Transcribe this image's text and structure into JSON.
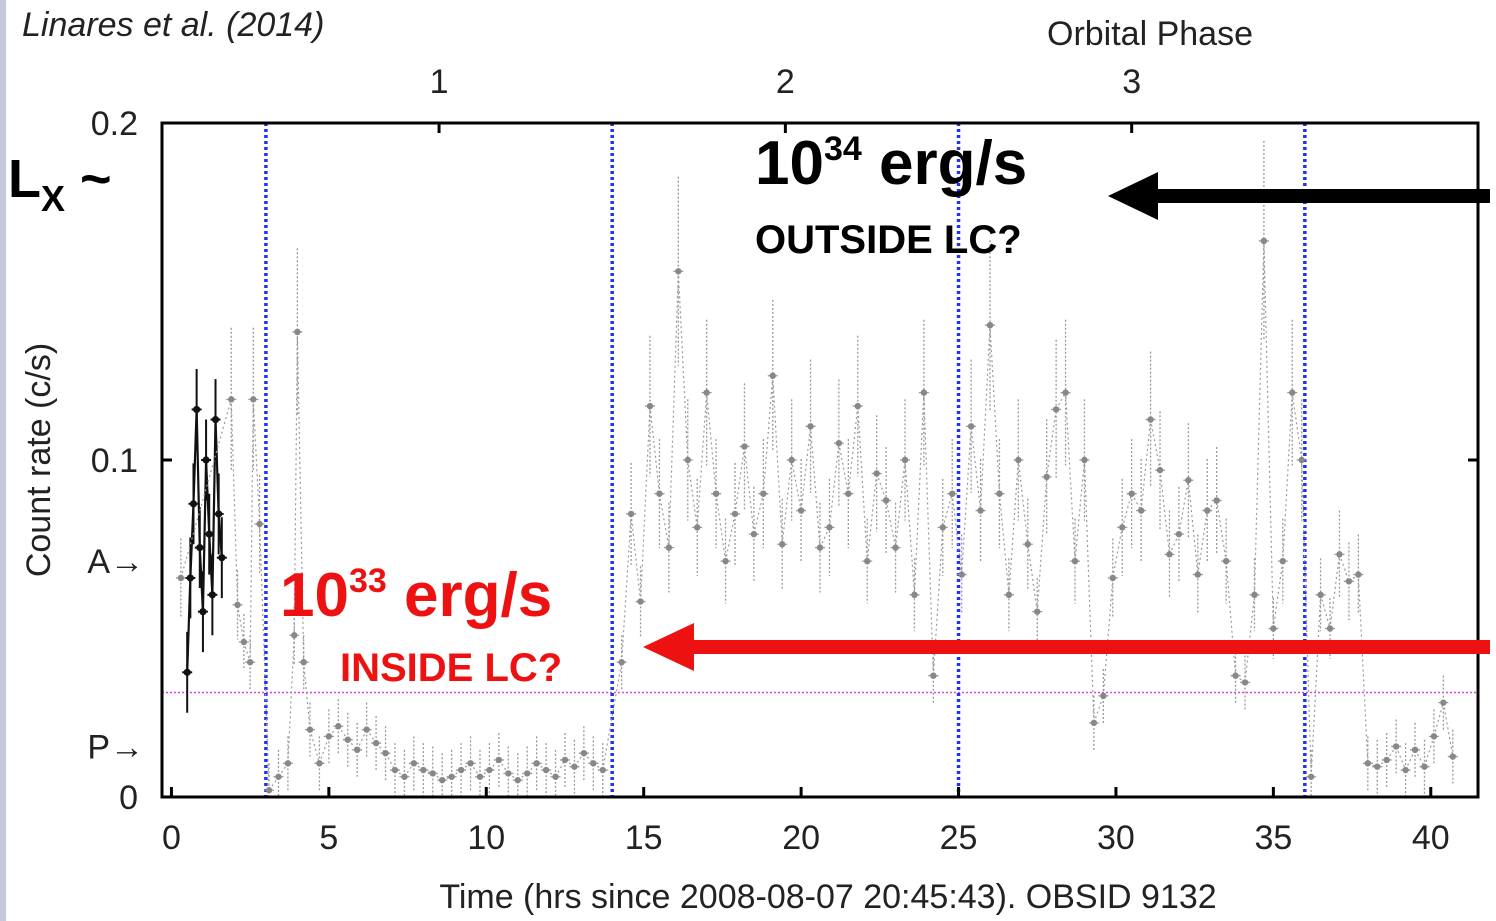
{
  "chart_data": {
    "type": "scatter",
    "citation": "Linares et al. (2014)",
    "xlabel": "Time (hrs since 2008-08-07 20:45:43). OBSID 9132",
    "ylabel": "Count rate (c/s)",
    "top_axis_label": "Orbital  Phase",
    "xlim": [
      -0.3,
      41.5
    ],
    "ylim": [
      0,
      0.2
    ],
    "x_ticks": [
      0,
      5,
      10,
      15,
      20,
      25,
      30,
      35,
      40
    ],
    "x_tick_labels": [
      "0",
      "5",
      "10",
      "15",
      "20",
      "25",
      "30",
      "35",
      "40"
    ],
    "y_ticks": [
      0,
      0.1,
      0.2
    ],
    "y_tick_labels": [
      "0",
      "0.1",
      "0.2"
    ],
    "y_markers": [
      {
        "label": "A→",
        "y": 0.07
      },
      {
        "label": "P→",
        "y": 0.015
      }
    ],
    "top_ticks": [
      {
        "label": "1",
        "x": 8.5
      },
      {
        "label": "2",
        "x": 19.5
      },
      {
        "label": "3",
        "x": 30.5
      }
    ],
    "phase_boundaries": [
      3.0,
      14.0,
      25.0,
      36.0
    ],
    "reference_level": 0.031,
    "series": [
      {
        "style": "solid-black",
        "points": [
          [
            0.5,
            0.037
          ],
          [
            0.6,
            0.065
          ],
          [
            0.7,
            0.087
          ],
          [
            0.8,
            0.115
          ],
          [
            0.9,
            0.074
          ],
          [
            1.0,
            0.055
          ],
          [
            1.1,
            0.1
          ],
          [
            1.2,
            0.078
          ],
          [
            1.3,
            0.06
          ],
          [
            1.4,
            0.112
          ],
          [
            1.5,
            0.084
          ],
          [
            1.6,
            0.071
          ]
        ]
      },
      {
        "style": "dotted-gray",
        "points": [
          [
            0.3,
            0.065
          ],
          [
            1.9,
            0.118
          ],
          [
            2.1,
            0.057
          ],
          [
            2.3,
            0.046
          ],
          [
            2.5,
            0.04
          ],
          [
            2.6,
            0.118
          ],
          [
            2.8,
            0.081
          ],
          [
            3.1,
            0.002
          ],
          [
            3.4,
            0.006
          ],
          [
            3.7,
            0.01
          ],
          [
            3.9,
            0.048
          ],
          [
            4.0,
            0.138
          ],
          [
            4.2,
            0.04
          ],
          [
            4.4,
            0.02
          ],
          [
            4.7,
            0.01
          ],
          [
            5.0,
            0.018
          ],
          [
            5.3,
            0.021
          ],
          [
            5.6,
            0.017
          ],
          [
            5.9,
            0.014
          ],
          [
            6.2,
            0.02
          ],
          [
            6.5,
            0.016
          ],
          [
            6.8,
            0.013
          ],
          [
            7.1,
            0.008
          ],
          [
            7.4,
            0.006
          ],
          [
            7.7,
            0.01
          ],
          [
            8.0,
            0.008
          ],
          [
            8.3,
            0.007
          ],
          [
            8.6,
            0.005
          ],
          [
            8.9,
            0.006
          ],
          [
            9.2,
            0.008
          ],
          [
            9.5,
            0.01
          ],
          [
            9.8,
            0.006
          ],
          [
            10.1,
            0.008
          ],
          [
            10.4,
            0.011
          ],
          [
            10.7,
            0.007
          ],
          [
            11.0,
            0.005
          ],
          [
            11.3,
            0.007
          ],
          [
            11.6,
            0.01
          ],
          [
            11.9,
            0.008
          ],
          [
            12.2,
            0.006
          ],
          [
            12.5,
            0.011
          ],
          [
            12.8,
            0.009
          ],
          [
            13.1,
            0.013
          ],
          [
            13.4,
            0.01
          ],
          [
            13.7,
            0.008
          ],
          [
            14.3,
            0.04
          ],
          [
            14.6,
            0.084
          ],
          [
            14.9,
            0.058
          ],
          [
            15.2,
            0.116
          ],
          [
            15.5,
            0.09
          ],
          [
            15.8,
            0.074
          ],
          [
            16.1,
            0.156
          ],
          [
            16.4,
            0.1
          ],
          [
            16.7,
            0.08
          ],
          [
            17.0,
            0.12
          ],
          [
            17.3,
            0.09
          ],
          [
            17.6,
            0.07
          ],
          [
            17.9,
            0.084
          ],
          [
            18.2,
            0.104
          ],
          [
            18.5,
            0.078
          ],
          [
            18.8,
            0.09
          ],
          [
            19.1,
            0.125
          ],
          [
            19.4,
            0.075
          ],
          [
            19.7,
            0.1
          ],
          [
            20.0,
            0.085
          ],
          [
            20.3,
            0.11
          ],
          [
            20.6,
            0.074
          ],
          [
            20.9,
            0.08
          ],
          [
            21.2,
            0.105
          ],
          [
            21.5,
            0.09
          ],
          [
            21.8,
            0.116
          ],
          [
            22.1,
            0.07
          ],
          [
            22.4,
            0.096
          ],
          [
            22.7,
            0.088
          ],
          [
            23.0,
            0.074
          ],
          [
            23.3,
            0.1
          ],
          [
            23.6,
            0.06
          ],
          [
            23.9,
            0.12
          ],
          [
            24.2,
            0.036
          ],
          [
            24.5,
            0.08
          ],
          [
            24.8,
            0.09
          ],
          [
            25.1,
            0.066
          ],
          [
            25.4,
            0.11
          ],
          [
            25.7,
            0.085
          ],
          [
            26.0,
            0.14
          ],
          [
            26.3,
            0.09
          ],
          [
            26.6,
            0.06
          ],
          [
            26.9,
            0.1
          ],
          [
            27.2,
            0.075
          ],
          [
            27.5,
            0.055
          ],
          [
            27.8,
            0.095
          ],
          [
            28.1,
            0.115
          ],
          [
            28.4,
            0.12
          ],
          [
            28.7,
            0.07
          ],
          [
            29.0,
            0.1
          ],
          [
            29.3,
            0.022
          ],
          [
            29.6,
            0.03
          ],
          [
            29.9,
            0.065
          ],
          [
            30.2,
            0.08
          ],
          [
            30.5,
            0.09
          ],
          [
            30.8,
            0.085
          ],
          [
            31.1,
            0.112
          ],
          [
            31.4,
            0.097
          ],
          [
            31.7,
            0.072
          ],
          [
            32.0,
            0.078
          ],
          [
            32.3,
            0.094
          ],
          [
            32.6,
            0.066
          ],
          [
            32.9,
            0.085
          ],
          [
            33.2,
            0.088
          ],
          [
            33.5,
            0.07
          ],
          [
            33.8,
            0.036
          ],
          [
            34.1,
            0.034
          ],
          [
            34.4,
            0.06
          ],
          [
            34.7,
            0.165
          ],
          [
            35.0,
            0.05
          ],
          [
            35.3,
            0.07
          ],
          [
            35.6,
            0.12
          ],
          [
            35.9,
            0.1
          ],
          [
            36.2,
            0.006
          ],
          [
            36.5,
            0.06
          ],
          [
            36.8,
            0.05
          ],
          [
            37.1,
            0.072
          ],
          [
            37.4,
            0.064
          ],
          [
            37.7,
            0.066
          ],
          [
            38.0,
            0.01
          ],
          [
            38.3,
            0.009
          ],
          [
            38.6,
            0.011
          ],
          [
            38.9,
            0.015
          ],
          [
            39.2,
            0.008
          ],
          [
            39.5,
            0.014
          ],
          [
            39.8,
            0.009
          ],
          [
            40.1,
            0.018
          ],
          [
            40.4,
            0.028
          ],
          [
            40.7,
            0.012
          ]
        ]
      }
    ]
  },
  "annotations": {
    "lx_prefix": "L",
    "lx_sub": "X",
    "lx_suffix": " ~",
    "high_base": "10",
    "high_exp": "34",
    "high_unit": " erg/s",
    "high_note": "OUTSIDE LC?",
    "low_base": "10",
    "low_exp": "33",
    "low_unit": " erg/s",
    "low_note": "INSIDE LC?"
  },
  "colors": {
    "phase_lines": "#2233ee",
    "reference_line": "#dd44dd",
    "arrow_high": "#000000",
    "arrow_low": "#ee1111",
    "low_text": "#ee1111",
    "solid_series": "#111111",
    "dotted_series": "#999999"
  }
}
